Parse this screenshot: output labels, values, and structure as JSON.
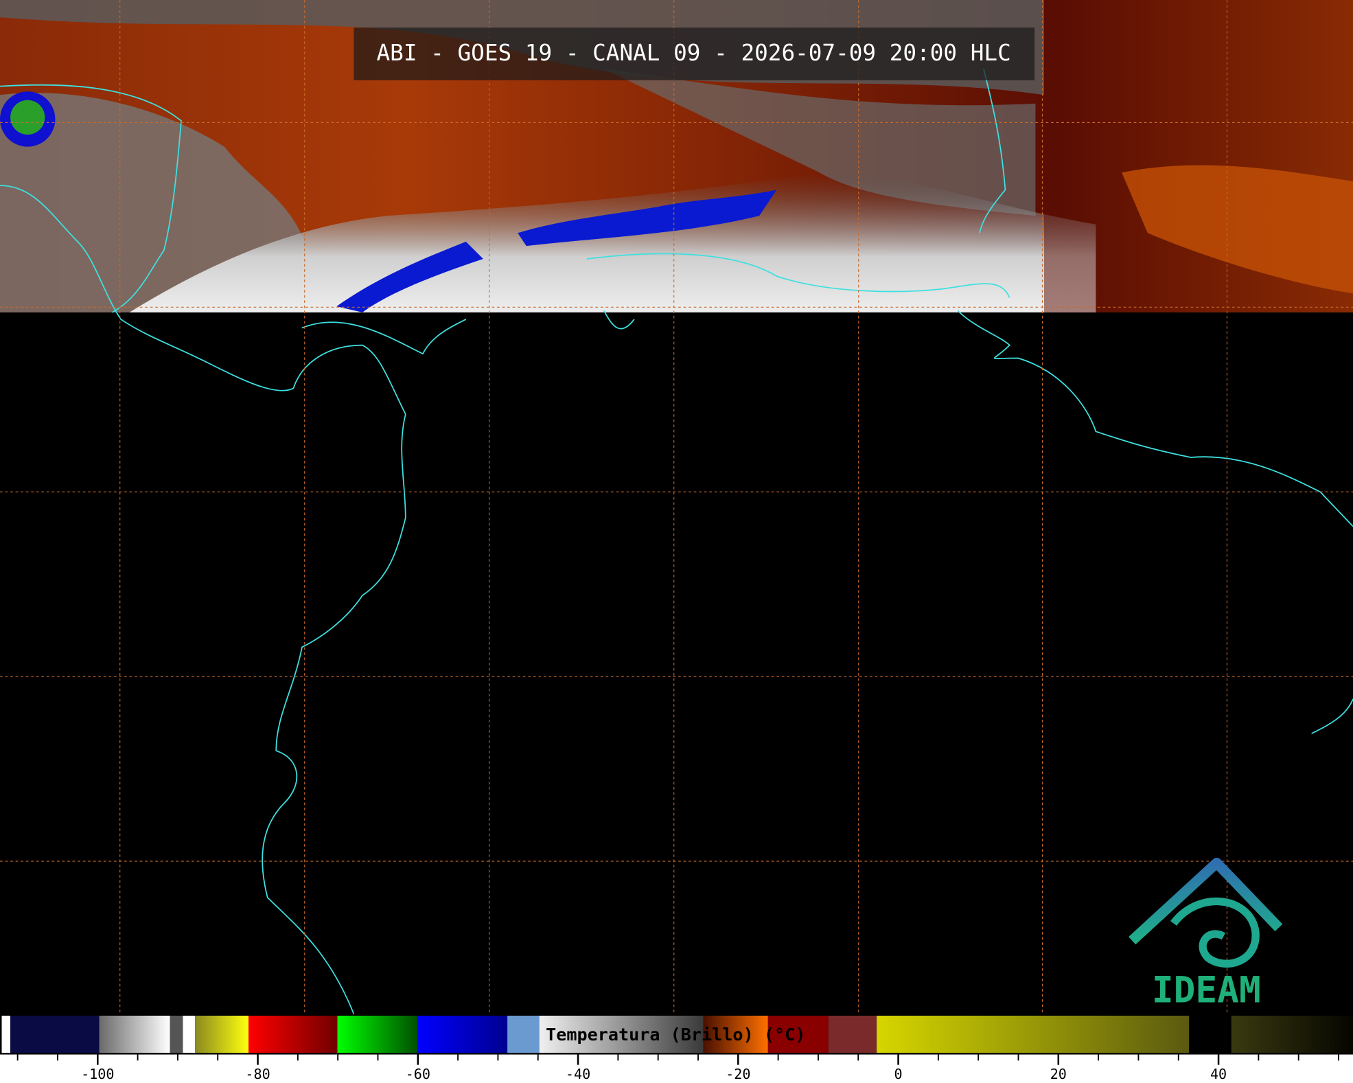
{
  "header": {
    "title": "ABI - GOES 19 - CANAL 09 - 2026-07-09 20:00 HLC"
  },
  "colorbar": {
    "label": "Temperatura (Brillo) (°C)",
    "ticks": [
      -100,
      -80,
      -60,
      -40,
      -20,
      0,
      20,
      40
    ],
    "range": [
      -112.2,
      56.8
    ],
    "minor_step": 5
  },
  "logo": {
    "text": "IDEAM"
  }
}
